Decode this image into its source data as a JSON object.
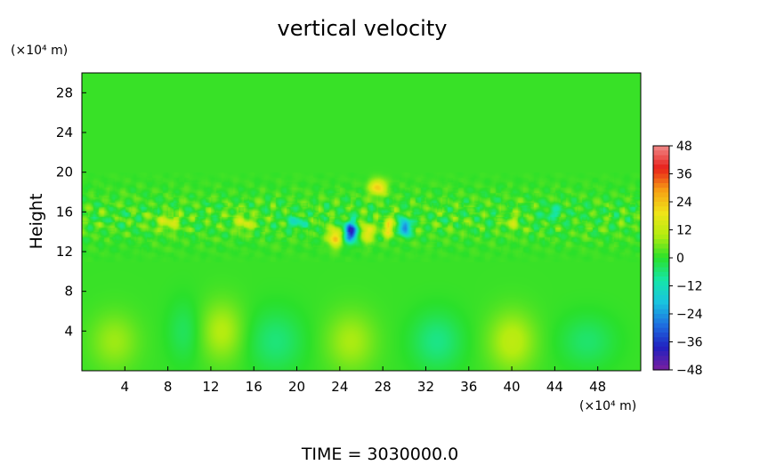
{
  "chart_data": {
    "type": "heatmap",
    "title": "vertical velocity",
    "ylabel": "Height",
    "x_unit_label": "(×10⁴ m)",
    "y_unit_label": "(×10⁴ m)",
    "xlim": [
      0,
      52
    ],
    "ylim": [
      0,
      30
    ],
    "x_ticks": [
      4,
      8,
      12,
      16,
      20,
      24,
      28,
      32,
      36,
      40,
      44,
      48
    ],
    "y_ticks": [
      4,
      8,
      12,
      16,
      20,
      24,
      28
    ],
    "colorbar": {
      "ticks": [
        48,
        36,
        24,
        12,
        0,
        -12,
        -24,
        -36,
        -48
      ],
      "tick_labels": [
        "48",
        "36",
        "24",
        "12",
        "0",
        "−12",
        "−24",
        "−36",
        "−48"
      ],
      "range": [
        -48,
        48
      ],
      "colors": [
        "#7a1fa0",
        "#2020c0",
        "#1f6fe0",
        "#19c3e0",
        "#16e6a8",
        "#2ae02a",
        "#b4ec10",
        "#f0e418",
        "#f6a014",
        "#e8201a",
        "#f08a8a"
      ]
    },
    "background_value": 1,
    "features": [
      {
        "x": 3,
        "y": 3,
        "sx": 2.2,
        "sy": 2.8,
        "value": 7
      },
      {
        "x": 13,
        "y": 4,
        "sx": 2.0,
        "sy": 3.0,
        "value": 9
      },
      {
        "x": 18,
        "y": 3,
        "sx": 2.5,
        "sy": 3.0,
        "value": -7
      },
      {
        "x": 25,
        "y": 3,
        "sx": 2.3,
        "sy": 3.0,
        "value": 8
      },
      {
        "x": 33,
        "y": 3,
        "sx": 2.3,
        "sy": 2.8,
        "value": -8
      },
      {
        "x": 40,
        "y": 3,
        "sx": 2.2,
        "sy": 3.0,
        "value": 10
      },
      {
        "x": 47,
        "y": 3,
        "sx": 2.5,
        "sy": 2.5,
        "value": -6
      },
      {
        "x": 9.5,
        "y": 4,
        "sx": 1.5,
        "sy": 3.0,
        "value": -5
      },
      {
        "x": 25,
        "y": 14,
        "sx": 0.6,
        "sy": 1.0,
        "value": -38
      },
      {
        "x": 23.5,
        "y": 13.5,
        "sx": 0.6,
        "sy": 1.0,
        "value": 24
      },
      {
        "x": 26.5,
        "y": 14,
        "sx": 0.6,
        "sy": 1.0,
        "value": 18
      },
      {
        "x": 30,
        "y": 14.5,
        "sx": 0.5,
        "sy": 0.8,
        "value": -32
      },
      {
        "x": 28.5,
        "y": 14.5,
        "sx": 0.5,
        "sy": 1.0,
        "value": 20
      },
      {
        "x": 27.5,
        "y": 18.5,
        "sx": 0.8,
        "sy": 0.8,
        "value": 22
      },
      {
        "x": 8,
        "y": 15,
        "sx": 1.0,
        "sy": 0.8,
        "value": 14
      },
      {
        "x": 15,
        "y": 15,
        "sx": 1.0,
        "sy": 0.8,
        "value": 12
      },
      {
        "x": 20,
        "y": 15,
        "sx": 0.8,
        "sy": 0.7,
        "value": -10
      },
      {
        "x": 40,
        "y": 15,
        "sx": 0.8,
        "sy": 0.7,
        "value": 10
      },
      {
        "x": 44,
        "y": 16,
        "sx": 1.0,
        "sy": 0.7,
        "value": -9
      }
    ],
    "footer": "TIME = 3030000.0"
  }
}
